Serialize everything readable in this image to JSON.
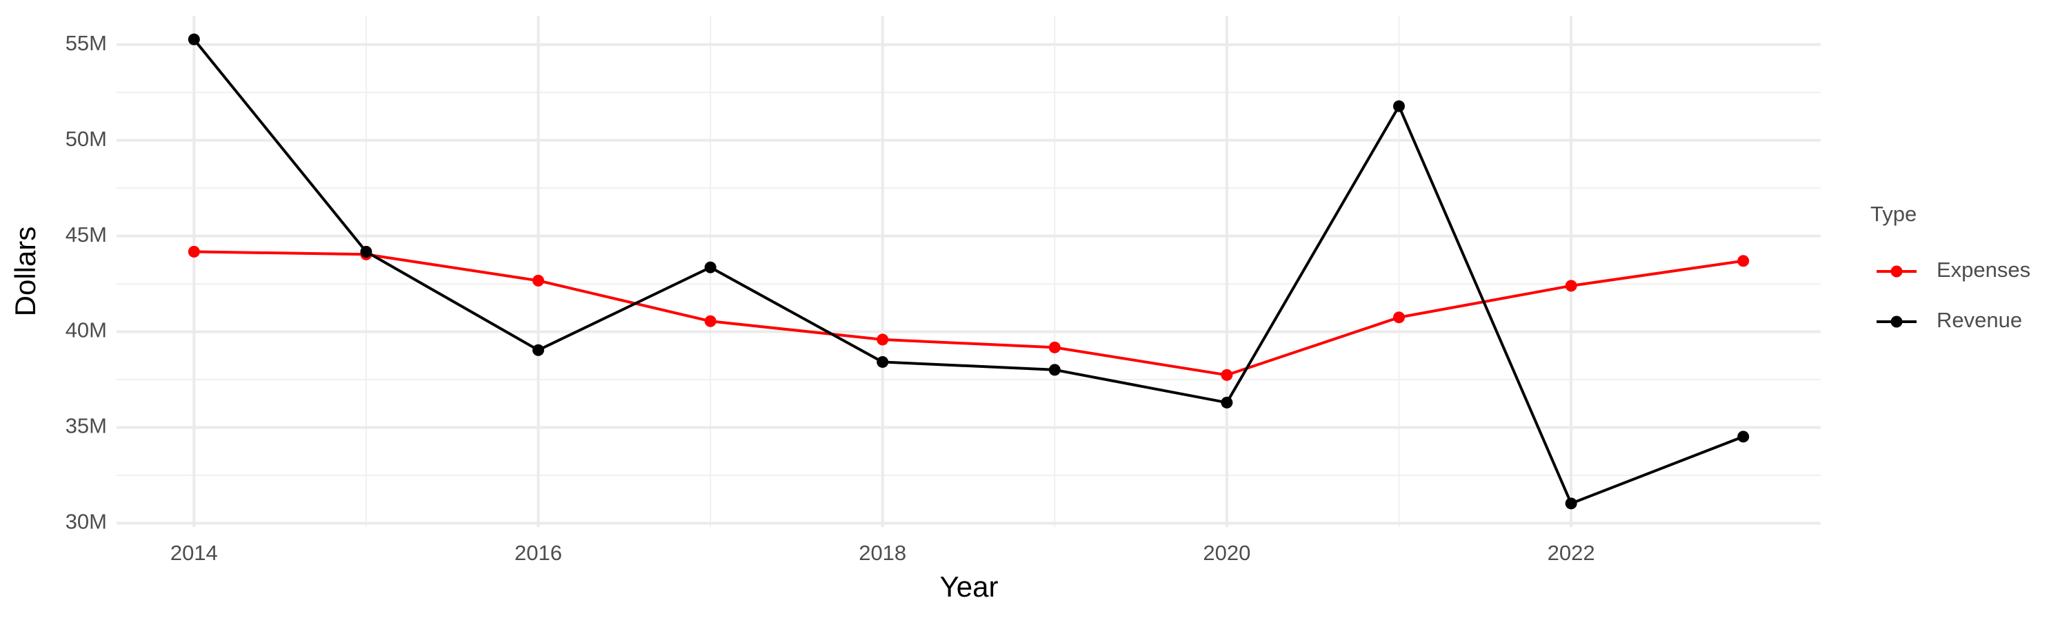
{
  "chart_data": {
    "type": "line",
    "x_label": "Year",
    "y_label": "Dollars",
    "legend_title": "Type",
    "x": [
      2014,
      2015,
      2016,
      2017,
      2018,
      2019,
      2020,
      2021,
      2022,
      2023
    ],
    "series": [
      {
        "name": "Expenses",
        "color": "#ff0000",
        "values": [
          44180000,
          44040000,
          42670000,
          40550000,
          39590000,
          39180000,
          37740000,
          40750000,
          42400000,
          43700000
        ]
      },
      {
        "name": "Revenue",
        "color": "#000000",
        "values": [
          55270000,
          44180000,
          39040000,
          43360000,
          38420000,
          38010000,
          36300000,
          51780000,
          31030000,
          34520000
        ]
      }
    ],
    "xlim": [
      2013.55,
      2023.45
    ],
    "xticks": [
      2014,
      2016,
      2018,
      2020,
      2022
    ],
    "ylim": [
      29800000,
      56500000
    ],
    "yticks": [
      {
        "value": 30000000,
        "label": "30M"
      },
      {
        "value": 35000000,
        "label": "35M"
      },
      {
        "value": 40000000,
        "label": "40M"
      },
      {
        "value": 45000000,
        "label": "45M"
      },
      {
        "value": 50000000,
        "label": "50M"
      },
      {
        "value": 55000000,
        "label": "55M"
      }
    ],
    "grid": true,
    "legend_position": "right"
  }
}
